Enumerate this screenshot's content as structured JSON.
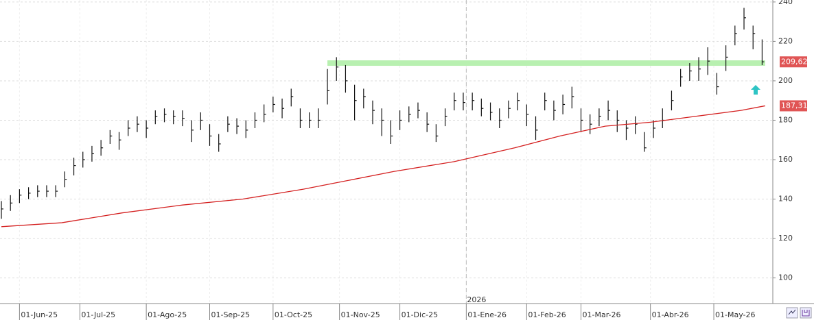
{
  "chart_data": {
    "type": "ohlc",
    "x": [
      0,
      3,
      6,
      9,
      12,
      15,
      18,
      21,
      24,
      27,
      30,
      33,
      36,
      39,
      42,
      45,
      48,
      51,
      54,
      57,
      60,
      63,
      66,
      69,
      72,
      75,
      78,
      81,
      84,
      87,
      90,
      93,
      96,
      99,
      102,
      105,
      108,
      111,
      114,
      117,
      120,
      123,
      126,
      129,
      132,
      135,
      138,
      141,
      144,
      147,
      150,
      153,
      156,
      159,
      162,
      165,
      168,
      171,
      174,
      177,
      180,
      183,
      186,
      189,
      192,
      195,
      198,
      201,
      204,
      207,
      210,
      213,
      216,
      219,
      222,
      225,
      228,
      231,
      234,
      237,
      240,
      243,
      246,
      249,
      252
    ],
    "high": [
      139,
      142,
      145,
      146,
      147,
      147,
      147,
      154,
      161,
      164,
      167,
      170,
      175,
      174,
      180,
      182,
      180,
      185,
      186,
      185,
      185,
      180,
      184,
      178,
      173,
      182,
      181,
      180,
      184,
      188,
      192,
      191,
      196,
      186,
      184,
      186,
      206,
      212,
      208,
      198,
      196,
      190,
      186,
      180,
      185,
      187,
      189,
      184,
      178,
      186,
      194,
      194,
      194,
      191,
      189,
      186,
      190,
      194,
      188,
      182,
      194,
      190,
      193,
      197,
      186,
      183,
      186,
      190,
      185,
      180,
      182,
      174,
      180,
      186,
      195,
      206,
      209,
      212,
      217,
      204,
      218,
      228,
      237,
      228,
      221
    ],
    "low": [
      130,
      134,
      138,
      140,
      141,
      141,
      141,
      146,
      152,
      156,
      159,
      162,
      168,
      165,
      172,
      174,
      171,
      178,
      179,
      178,
      177,
      169,
      175,
      167,
      164,
      174,
      173,
      171,
      176,
      179,
      184,
      181,
      187,
      176,
      176,
      176,
      188,
      200,
      194,
      180,
      186,
      178,
      172,
      168,
      175,
      179,
      181,
      174,
      169,
      177,
      185,
      185,
      185,
      182,
      180,
      176,
      181,
      185,
      177,
      170,
      185,
      180,
      183,
      186,
      174,
      173,
      177,
      180,
      174,
      170,
      173,
      164,
      171,
      176,
      185,
      197,
      200,
      200,
      203,
      193,
      205,
      218,
      226,
      216,
      208
    ],
    "close": [
      135,
      138,
      142,
      143,
      144,
      144,
      144,
      150,
      157,
      160,
      163,
      166,
      172,
      170,
      176,
      178,
      176,
      182,
      183,
      182,
      181,
      175,
      180,
      172,
      168,
      178,
      177,
      175,
      180,
      183,
      188,
      186,
      192,
      180,
      180,
      180,
      195,
      207,
      200,
      190,
      192,
      185,
      180,
      172,
      180,
      183,
      185,
      178,
      172,
      182,
      190,
      189,
      190,
      186,
      184,
      180,
      186,
      190,
      183,
      175,
      190,
      185,
      188,
      192,
      180,
      178,
      182,
      185,
      180,
      176,
      178,
      166,
      176,
      180,
      190,
      202,
      205,
      206,
      210,
      197,
      212,
      224,
      232,
      224,
      209.62
    ],
    "bar_color": "#111111",
    "moving_average": {
      "color": "#d42020",
      "x": [
        0,
        20,
        40,
        60,
        80,
        100,
        110,
        130,
        150,
        170,
        185,
        200,
        215,
        230,
        245,
        253
      ],
      "values": [
        126,
        128,
        133,
        137,
        140,
        145,
        148,
        154,
        159,
        166,
        172,
        177,
        179,
        182,
        185,
        187.31
      ]
    },
    "last_price": {
      "value": 209.62,
      "label": "209,62"
    },
    "ma_last": {
      "value": 187.31,
      "label": "187,31"
    },
    "level": {
      "value": 209,
      "x": [
        108,
        253
      ],
      "color": "#b8f0b0"
    },
    "year_marker": {
      "x": 154,
      "label": "2026"
    },
    "xlim": [
      0,
      256
    ],
    "ylim": [
      87,
      241
    ],
    "yticks": [
      100,
      120,
      140,
      160,
      180,
      200,
      220,
      240
    ],
    "xticks": [
      {
        "value": 6,
        "label": "01-Jun-25"
      },
      {
        "value": 26,
        "label": "01-Jul-25"
      },
      {
        "value": 48,
        "label": "01-Ago-25"
      },
      {
        "value": 69,
        "label": "01-Sep-25"
      },
      {
        "value": 90,
        "label": "01-Oct-25"
      },
      {
        "value": 112,
        "label": "01-Nov-25"
      },
      {
        "value": 132,
        "label": "01-Dic-25"
      },
      {
        "value": 154,
        "label": "01-Ene-26"
      },
      {
        "value": 174,
        "label": "01-Feb-26"
      },
      {
        "value": 192,
        "label": "01-Mar-26"
      },
      {
        "value": 215,
        "label": "01-Abr-26"
      },
      {
        "value": 236,
        "label": "01-May-26"
      }
    ],
    "grid": true
  }
}
